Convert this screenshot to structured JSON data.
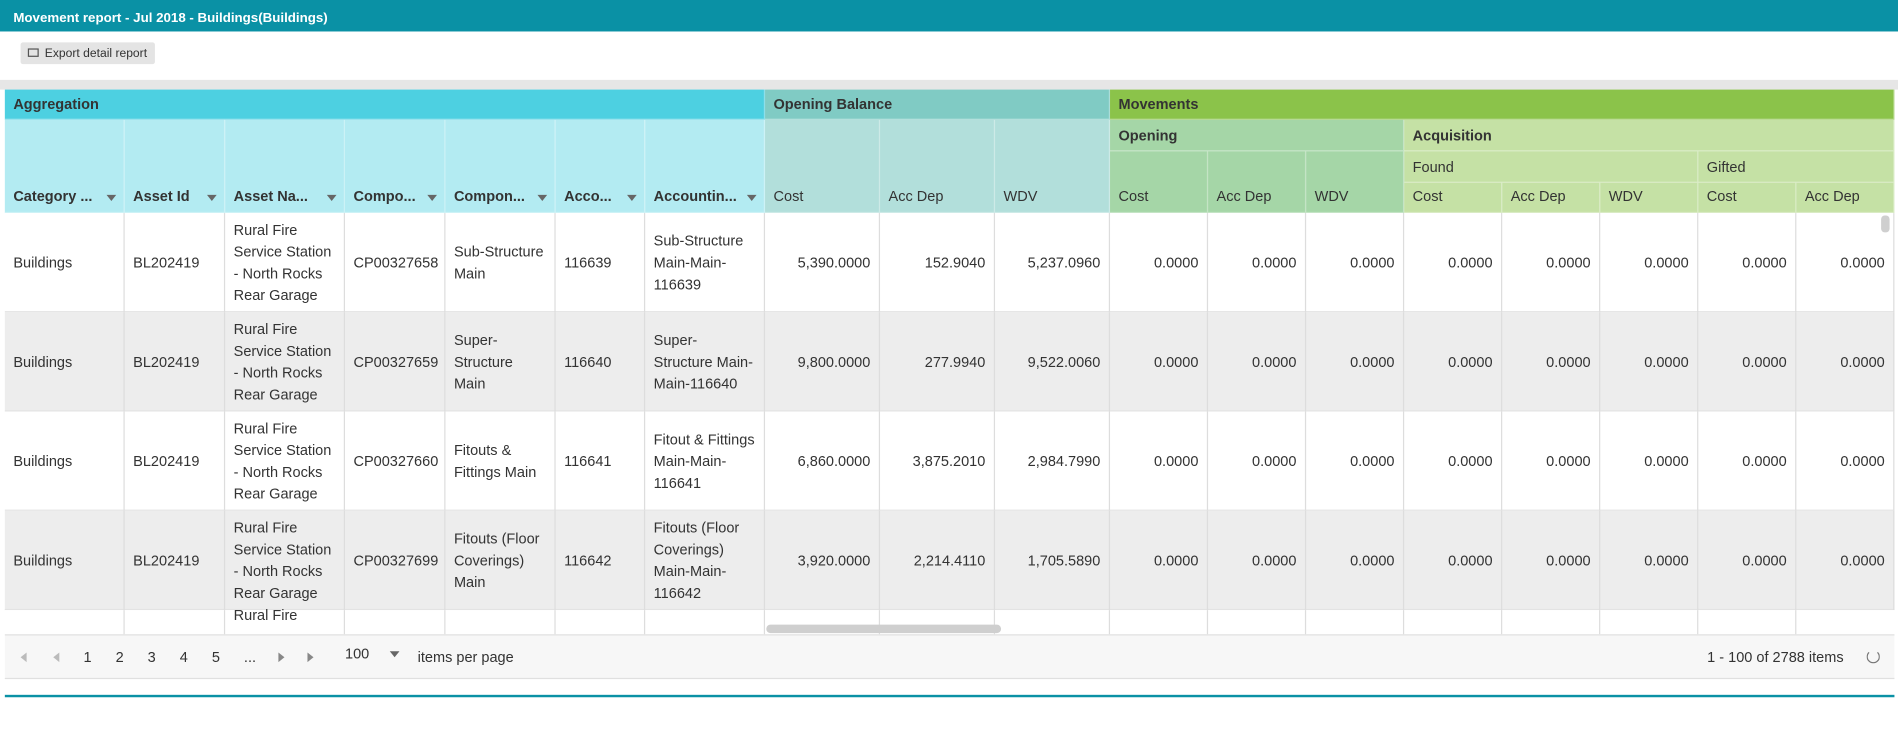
{
  "header": {
    "title": "Movement report - Jul 2018 - Buildings(Buildings)"
  },
  "toolbar": {
    "export_button": "Export detail report"
  },
  "table": {
    "level1": [
      "Aggregation",
      "Opening Balance",
      "Movements"
    ],
    "level2": [
      "Opening",
      "Acquisition"
    ],
    "level3": [
      "Found",
      "Gifted"
    ],
    "columns": [
      "Category ...",
      "Asset Id",
      "Asset Na...",
      "Compo...",
      "Compon...",
      "Acco...",
      "Accountin...",
      "Cost",
      "Acc Dep",
      "WDV",
      "Cost",
      "Acc Dep",
      "WDV",
      "Cost",
      "Acc Dep",
      "WDV",
      "Cost",
      "Acc Dep"
    ],
    "rows": [
      [
        "Buildings",
        "BL202419",
        "Rural Fire Service Station - North Rocks Rear Garage",
        "CP00327658",
        "Sub-Structure Main",
        "116639",
        "Sub-Structure Main-Main-116639",
        "5,390.0000",
        "152.9040",
        "5,237.0960",
        "0.0000",
        "0.0000",
        "0.0000",
        "0.0000",
        "0.0000",
        "0.0000",
        "0.0000",
        "0.0000"
      ],
      [
        "Buildings",
        "BL202419",
        "Rural Fire Service Station - North Rocks Rear Garage",
        "CP00327659",
        "Super-Structure Main",
        "116640",
        "Super-Structure Main-Main-116640",
        "9,800.0000",
        "277.9940",
        "9,522.0060",
        "0.0000",
        "0.0000",
        "0.0000",
        "0.0000",
        "0.0000",
        "0.0000",
        "0.0000",
        "0.0000"
      ],
      [
        "Buildings",
        "BL202419",
        "Rural Fire Service Station - North Rocks Rear Garage",
        "CP00327660",
        "Fitouts & Fittings Main",
        "116641",
        "Fitout & Fittings Main-Main-116641",
        "6,860.0000",
        "3,875.2010",
        "2,984.7990",
        "0.0000",
        "0.0000",
        "0.0000",
        "0.0000",
        "0.0000",
        "0.0000",
        "0.0000",
        "0.0000"
      ],
      [
        "Buildings",
        "BL202419",
        "Rural Fire Service Station - North Rocks Rear Garage",
        "CP00327699",
        "Fitouts (Floor Coverings) Main",
        "116642",
        "Fitouts (Floor Coverings) Main-Main-116642",
        "3,920.0000",
        "2,214.4110",
        "1,705.5890",
        "0.0000",
        "0.0000",
        "0.0000",
        "0.0000",
        "0.0000",
        "0.0000",
        "0.0000",
        "0.0000"
      ]
    ],
    "partial_row": {
      "asset_name": "Rural Fire"
    }
  },
  "pager": {
    "pages": [
      "1",
      "2",
      "3",
      "4",
      "5",
      "..."
    ],
    "page_size": "100",
    "items_per_page": "items per page",
    "summary": "1 - 100 of 2788 items"
  }
}
